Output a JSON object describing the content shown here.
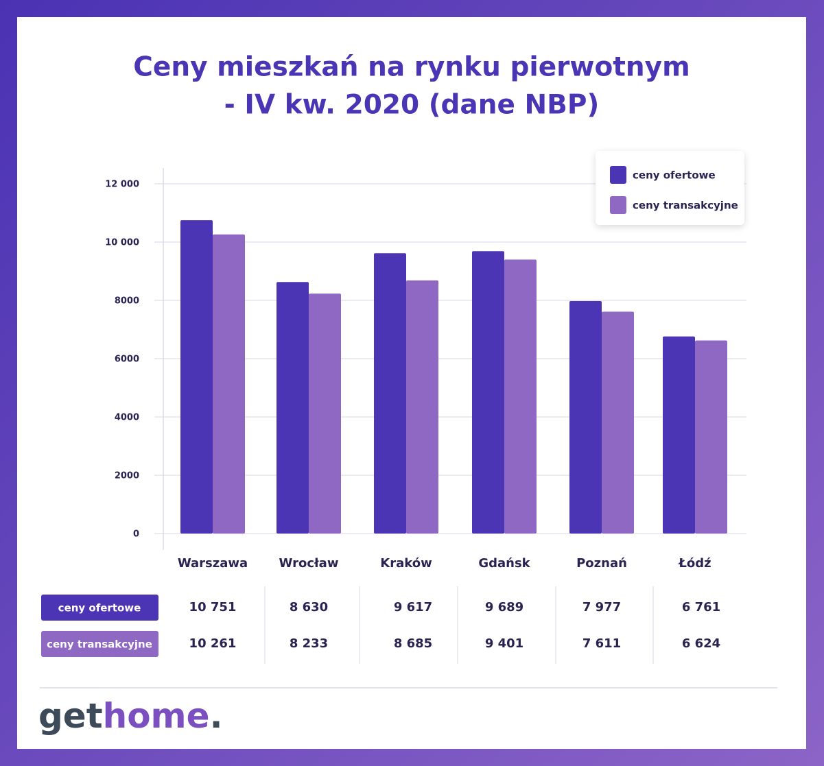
{
  "chart_data": {
    "type": "bar",
    "title": [
      "Ceny mieszkań na rynku pierwotnym",
      "- IV kw. 2020 (dane NBP)"
    ],
    "categories": [
      "Warszawa",
      "Wrocław",
      "Kraków",
      "Gdańsk",
      "Poznań",
      "Łódź"
    ],
    "series": [
      {
        "name": "ceny ofertowe",
        "color": "#4b35b5",
        "values": [
          10751,
          8630,
          9617,
          9689,
          7977,
          6761
        ],
        "value_labels": [
          "10 751",
          "8 630",
          "9 617",
          "9 689",
          "7 977",
          "6 761"
        ]
      },
      {
        "name": "ceny transakcyjne",
        "color": "#8e68c2",
        "values": [
          10261,
          8233,
          8685,
          9401,
          7611,
          6624
        ],
        "value_labels": [
          "10 261",
          "8 233",
          "8 685",
          "9 401",
          "7 611",
          "6 624"
        ]
      }
    ],
    "ylim": [
      0,
      12000
    ],
    "yticks": [
      0,
      2000,
      4000,
      6000,
      8000,
      {
        "value": 10000,
        "label": "10 000"
      },
      {
        "value": 12000,
        "label": "12 000"
      }
    ],
    "grid": true,
    "legend": "top-right"
  },
  "logo": [
    "get",
    "home",
    "."
  ]
}
